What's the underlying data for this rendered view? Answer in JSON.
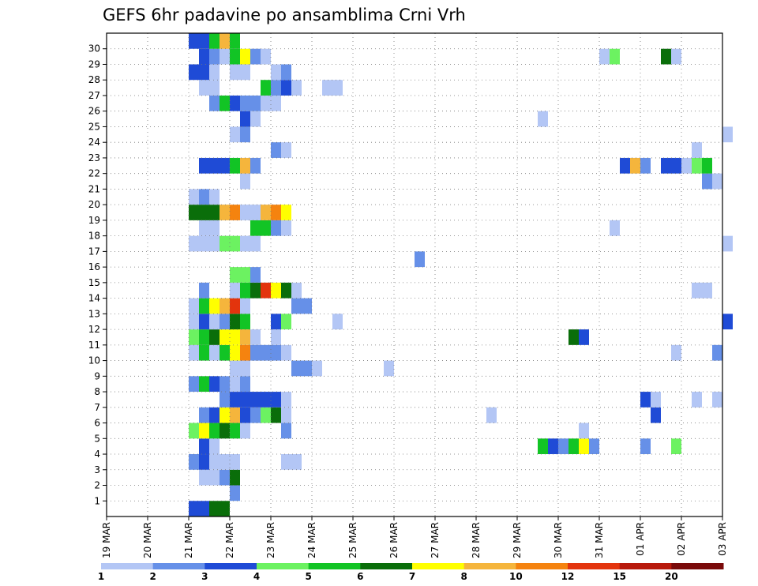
{
  "chart_data": {
    "type": "heatmap",
    "title": "GEFS 6hr padavine po ansamblima Crni Vrh",
    "x_ticks": [
      "19 MAR",
      "20 MAR",
      "21 MAR",
      "22 MAR",
      "23 MAR",
      "24 MAR",
      "25 MAR",
      "26 MAR",
      "27 MAR",
      "28 MAR",
      "29 MAR",
      "30 MAR",
      "31 MAR",
      "01 APR",
      "02 APR",
      "03 APR"
    ],
    "y_ticks": [
      1,
      2,
      3,
      4,
      5,
      6,
      7,
      8,
      9,
      10,
      11,
      12,
      13,
      14,
      15,
      16,
      17,
      18,
      19,
      20,
      21,
      22,
      23,
      24,
      25,
      26,
      27,
      28,
      29,
      30
    ],
    "colorbar": {
      "labels": [
        "1",
        "2",
        "3",
        "4",
        "5",
        "6",
        "7",
        "8",
        "10",
        "12",
        "15",
        "20"
      ],
      "colors": [
        "#b3c6f5",
        "#6690e8",
        "#1f4bd6",
        "#6cf261",
        "#12c425",
        "#0a6e0a",
        "#ffff00",
        "#f5b53c",
        "#f5830f",
        "#e3340d",
        "#b81a0c",
        "#7a0a0a"
      ]
    },
    "grid": true,
    "cells": [
      {
        "m": 0,
        "t": 8,
        "v": 3
      },
      {
        "m": 0,
        "t": 9,
        "v": 3
      },
      {
        "m": 0,
        "t": 10,
        "v": 6
      },
      {
        "m": 0,
        "t": 11,
        "v": 6
      },
      {
        "m": 1,
        "t": 12,
        "v": 2
      },
      {
        "m": 2,
        "t": 9,
        "v": 1
      },
      {
        "m": 2,
        "t": 10,
        "v": 1
      },
      {
        "m": 2,
        "t": 11,
        "v": 2
      },
      {
        "m": 2,
        "t": 12,
        "v": 6
      },
      {
        "m": 3,
        "t": 8,
        "v": 2
      },
      {
        "m": 3,
        "t": 9,
        "v": 3
      },
      {
        "m": 3,
        "t": 10,
        "v": 1
      },
      {
        "m": 3,
        "t": 11,
        "v": 1
      },
      {
        "m": 3,
        "t": 12,
        "v": 1
      },
      {
        "m": 3,
        "t": 17,
        "v": 1
      },
      {
        "m": 3,
        "t": 18,
        "v": 1
      },
      {
        "m": 4,
        "t": 9,
        "v": 3
      },
      {
        "m": 4,
        "t": 10,
        "v": 1
      },
      {
        "m": 4,
        "t": 42,
        "v": 5
      },
      {
        "m": 4,
        "t": 43,
        "v": 3
      },
      {
        "m": 4,
        "t": 44,
        "v": 2
      },
      {
        "m": 4,
        "t": 45,
        "v": 5
      },
      {
        "m": 4,
        "t": 46,
        "v": 7
      },
      {
        "m": 4,
        "t": 47,
        "v": 2
      },
      {
        "m": 4,
        "t": 52,
        "v": 2
      },
      {
        "m": 4,
        "t": 55,
        "v": 4
      },
      {
        "m": 5,
        "t": 8,
        "v": 4
      },
      {
        "m": 5,
        "t": 9,
        "v": 7
      },
      {
        "m": 5,
        "t": 10,
        "v": 5
      },
      {
        "m": 5,
        "t": 11,
        "v": 6
      },
      {
        "m": 5,
        "t": 12,
        "v": 5
      },
      {
        "m": 5,
        "t": 13,
        "v": 1
      },
      {
        "m": 5,
        "t": 17,
        "v": 2
      },
      {
        "m": 5,
        "t": 46,
        "v": 1
      },
      {
        "m": 6,
        "t": 9,
        "v": 2
      },
      {
        "m": 6,
        "t": 10,
        "v": 3
      },
      {
        "m": 6,
        "t": 11,
        "v": 7
      },
      {
        "m": 6,
        "t": 12,
        "v": 8
      },
      {
        "m": 6,
        "t": 13,
        "v": 3
      },
      {
        "m": 6,
        "t": 14,
        "v": 2
      },
      {
        "m": 6,
        "t": 15,
        "v": 4
      },
      {
        "m": 6,
        "t": 16,
        "v": 6
      },
      {
        "m": 6,
        "t": 17,
        "v": 1
      },
      {
        "m": 6,
        "t": 37,
        "v": 1
      },
      {
        "m": 6,
        "t": 53,
        "v": 3
      },
      {
        "m": 7,
        "t": 11,
        "v": 2
      },
      {
        "m": 7,
        "t": 12,
        "v": 3
      },
      {
        "m": 7,
        "t": 13,
        "v": 3
      },
      {
        "m": 7,
        "t": 14,
        "v": 3
      },
      {
        "m": 7,
        "t": 15,
        "v": 3
      },
      {
        "m": 7,
        "t": 16,
        "v": 3
      },
      {
        "m": 7,
        "t": 17,
        "v": 1
      },
      {
        "m": 7,
        "t": 52,
        "v": 3
      },
      {
        "m": 7,
        "t": 53,
        "v": 1
      },
      {
        "m": 7,
        "t": 57,
        "v": 1
      },
      {
        "m": 7,
        "t": 59,
        "v": 1
      },
      {
        "m": 8,
        "t": 8,
        "v": 2
      },
      {
        "m": 8,
        "t": 9,
        "v": 5
      },
      {
        "m": 8,
        "t": 10,
        "v": 3
      },
      {
        "m": 8,
        "t": 11,
        "v": 2
      },
      {
        "m": 8,
        "t": 12,
        "v": 1
      },
      {
        "m": 8,
        "t": 13,
        "v": 2
      },
      {
        "m": 9,
        "t": 12,
        "v": 1
      },
      {
        "m": 9,
        "t": 13,
        "v": 1
      },
      {
        "m": 9,
        "t": 18,
        "v": 2
      },
      {
        "m": 9,
        "t": 19,
        "v": 2
      },
      {
        "m": 9,
        "t": 20,
        "v": 1
      },
      {
        "m": 9,
        "t": 27,
        "v": 1
      },
      {
        "m": 10,
        "t": 8,
        "v": 1
      },
      {
        "m": 10,
        "t": 9,
        "v": 5
      },
      {
        "m": 10,
        "t": 10,
        "v": 1
      },
      {
        "m": 10,
        "t": 11,
        "v": 5
      },
      {
        "m": 10,
        "t": 12,
        "v": 7
      },
      {
        "m": 10,
        "t": 13,
        "v": 9
      },
      {
        "m": 10,
        "t": 14,
        "v": 2
      },
      {
        "m": 10,
        "t": 15,
        "v": 2
      },
      {
        "m": 10,
        "t": 16,
        "v": 2
      },
      {
        "m": 10,
        "t": 17,
        "v": 1
      },
      {
        "m": 10,
        "t": 55,
        "v": 1
      },
      {
        "m": 10,
        "t": 59,
        "v": 2
      },
      {
        "m": 11,
        "t": 8,
        "v": 4
      },
      {
        "m": 11,
        "t": 9,
        "v": 5
      },
      {
        "m": 11,
        "t": 10,
        "v": 6
      },
      {
        "m": 11,
        "t": 11,
        "v": 7
      },
      {
        "m": 11,
        "t": 12,
        "v": 7
      },
      {
        "m": 11,
        "t": 13,
        "v": 8
      },
      {
        "m": 11,
        "t": 14,
        "v": 1
      },
      {
        "m": 11,
        "t": 16,
        "v": 1
      },
      {
        "m": 11,
        "t": 45,
        "v": 6
      },
      {
        "m": 11,
        "t": 46,
        "v": 3
      },
      {
        "m": 12,
        "t": 8,
        "v": 1
      },
      {
        "m": 12,
        "t": 9,
        "v": 3
      },
      {
        "m": 12,
        "t": 10,
        "v": 1
      },
      {
        "m": 12,
        "t": 11,
        "v": 2
      },
      {
        "m": 12,
        "t": 12,
        "v": 6
      },
      {
        "m": 12,
        "t": 13,
        "v": 5
      },
      {
        "m": 12,
        "t": 16,
        "v": 3
      },
      {
        "m": 12,
        "t": 17,
        "v": 4
      },
      {
        "m": 12,
        "t": 22,
        "v": 1
      },
      {
        "m": 12,
        "t": 60,
        "v": 3
      },
      {
        "m": 13,
        "t": 8,
        "v": 1
      },
      {
        "m": 13,
        "t": 9,
        "v": 5
      },
      {
        "m": 13,
        "t": 10,
        "v": 7
      },
      {
        "m": 13,
        "t": 11,
        "v": 8
      },
      {
        "m": 13,
        "t": 12,
        "v": 10
      },
      {
        "m": 13,
        "t": 13,
        "v": 1
      },
      {
        "m": 13,
        "t": 18,
        "v": 2
      },
      {
        "m": 13,
        "t": 19,
        "v": 2
      },
      {
        "m": 14,
        "t": 9,
        "v": 2
      },
      {
        "m": 14,
        "t": 12,
        "v": 1
      },
      {
        "m": 14,
        "t": 13,
        "v": 5
      },
      {
        "m": 14,
        "t": 14,
        "v": 6
      },
      {
        "m": 14,
        "t": 15,
        "v": 10
      },
      {
        "m": 14,
        "t": 16,
        "v": 7
      },
      {
        "m": 14,
        "t": 17,
        "v": 6
      },
      {
        "m": 14,
        "t": 18,
        "v": 1
      },
      {
        "m": 14,
        "t": 57,
        "v": 1
      },
      {
        "m": 14,
        "t": 58,
        "v": 1
      },
      {
        "m": 15,
        "t": 12,
        "v": 4
      },
      {
        "m": 15,
        "t": 13,
        "v": 4
      },
      {
        "m": 15,
        "t": 14,
        "v": 2
      },
      {
        "m": 16,
        "t": 30,
        "v": 2
      },
      {
        "m": 17,
        "t": 8,
        "v": 1
      },
      {
        "m": 17,
        "t": 9,
        "v": 1
      },
      {
        "m": 17,
        "t": 10,
        "v": 1
      },
      {
        "m": 17,
        "t": 11,
        "v": 4
      },
      {
        "m": 17,
        "t": 12,
        "v": 4
      },
      {
        "m": 17,
        "t": 13,
        "v": 1
      },
      {
        "m": 17,
        "t": 14,
        "v": 1
      },
      {
        "m": 17,
        "t": 60,
        "v": 1
      },
      {
        "m": 18,
        "t": 9,
        "v": 1
      },
      {
        "m": 18,
        "t": 10,
        "v": 1
      },
      {
        "m": 18,
        "t": 14,
        "v": 5
      },
      {
        "m": 18,
        "t": 15,
        "v": 5
      },
      {
        "m": 18,
        "t": 16,
        "v": 2
      },
      {
        "m": 18,
        "t": 17,
        "v": 1
      },
      {
        "m": 18,
        "t": 49,
        "v": 1
      },
      {
        "m": 19,
        "t": 8,
        "v": 6
      },
      {
        "m": 19,
        "t": 9,
        "v": 6
      },
      {
        "m": 19,
        "t": 10,
        "v": 6
      },
      {
        "m": 19,
        "t": 11,
        "v": 8
      },
      {
        "m": 19,
        "t": 12,
        "v": 9
      },
      {
        "m": 19,
        "t": 13,
        "v": 1
      },
      {
        "m": 19,
        "t": 14,
        "v": 1
      },
      {
        "m": 19,
        "t": 15,
        "v": 8
      },
      {
        "m": 19,
        "t": 16,
        "v": 9
      },
      {
        "m": 19,
        "t": 17,
        "v": 7
      },
      {
        "m": 20,
        "t": 8,
        "v": 1
      },
      {
        "m": 20,
        "t": 9,
        "v": 2
      },
      {
        "m": 20,
        "t": 10,
        "v": 1
      },
      {
        "m": 21,
        "t": 13,
        "v": 1
      },
      {
        "m": 21,
        "t": 58,
        "v": 2
      },
      {
        "m": 21,
        "t": 59,
        "v": 1
      },
      {
        "m": 22,
        "t": 9,
        "v": 3
      },
      {
        "m": 22,
        "t": 10,
        "v": 3
      },
      {
        "m": 22,
        "t": 11,
        "v": 3
      },
      {
        "m": 22,
        "t": 12,
        "v": 5
      },
      {
        "m": 22,
        "t": 13,
        "v": 8
      },
      {
        "m": 22,
        "t": 14,
        "v": 2
      },
      {
        "m": 22,
        "t": 50,
        "v": 3
      },
      {
        "m": 22,
        "t": 51,
        "v": 8
      },
      {
        "m": 22,
        "t": 52,
        "v": 2
      },
      {
        "m": 22,
        "t": 54,
        "v": 3
      },
      {
        "m": 22,
        "t": 55,
        "v": 3
      },
      {
        "m": 22,
        "t": 56,
        "v": 1
      },
      {
        "m": 22,
        "t": 57,
        "v": 4
      },
      {
        "m": 22,
        "t": 58,
        "v": 5
      },
      {
        "m": 23,
        "t": 16,
        "v": 2
      },
      {
        "m": 23,
        "t": 17,
        "v": 1
      },
      {
        "m": 23,
        "t": 57,
        "v": 1
      },
      {
        "m": 24,
        "t": 12,
        "v": 1
      },
      {
        "m": 24,
        "t": 13,
        "v": 2
      },
      {
        "m": 24,
        "t": 60,
        "v": 1
      },
      {
        "m": 25,
        "t": 13,
        "v": 3
      },
      {
        "m": 25,
        "t": 14,
        "v": 1
      },
      {
        "m": 25,
        "t": 42,
        "v": 1
      },
      {
        "m": 26,
        "t": 10,
        "v": 2
      },
      {
        "m": 26,
        "t": 11,
        "v": 5
      },
      {
        "m": 26,
        "t": 12,
        "v": 3
      },
      {
        "m": 26,
        "t": 13,
        "v": 2
      },
      {
        "m": 26,
        "t": 14,
        "v": 2
      },
      {
        "m": 26,
        "t": 15,
        "v": 1
      },
      {
        "m": 26,
        "t": 16,
        "v": 1
      },
      {
        "m": 27,
        "t": 9,
        "v": 1
      },
      {
        "m": 27,
        "t": 10,
        "v": 1
      },
      {
        "m": 27,
        "t": 15,
        "v": 5
      },
      {
        "m": 27,
        "t": 16,
        "v": 2
      },
      {
        "m": 27,
        "t": 17,
        "v": 3
      },
      {
        "m": 27,
        "t": 18,
        "v": 1
      },
      {
        "m": 27,
        "t": 21,
        "v": 1
      },
      {
        "m": 27,
        "t": 22,
        "v": 1
      },
      {
        "m": 28,
        "t": 8,
        "v": 3
      },
      {
        "m": 28,
        "t": 9,
        "v": 3
      },
      {
        "m": 28,
        "t": 10,
        "v": 1
      },
      {
        "m": 28,
        "t": 12,
        "v": 1
      },
      {
        "m": 28,
        "t": 13,
        "v": 1
      },
      {
        "m": 28,
        "t": 16,
        "v": 1
      },
      {
        "m": 28,
        "t": 17,
        "v": 2
      },
      {
        "m": 29,
        "t": 9,
        "v": 3
      },
      {
        "m": 29,
        "t": 10,
        "v": 2
      },
      {
        "m": 29,
        "t": 11,
        "v": 1
      },
      {
        "m": 29,
        "t": 12,
        "v": 5
      },
      {
        "m": 29,
        "t": 13,
        "v": 7
      },
      {
        "m": 29,
        "t": 14,
        "v": 2
      },
      {
        "m": 29,
        "t": 15,
        "v": 1
      },
      {
        "m": 29,
        "t": 48,
        "v": 1
      },
      {
        "m": 29,
        "t": 49,
        "v": 4
      },
      {
        "m": 29,
        "t": 54,
        "v": 6
      },
      {
        "m": 29,
        "t": 55,
        "v": 1
      },
      {
        "m": 30,
        "t": 8,
        "v": 3
      },
      {
        "m": 30,
        "t": 9,
        "v": 3
      },
      {
        "m": 30,
        "t": 10,
        "v": 5
      },
      {
        "m": 30,
        "t": 11,
        "v": 8
      },
      {
        "m": 30,
        "t": 12,
        "v": 5
      }
    ]
  }
}
